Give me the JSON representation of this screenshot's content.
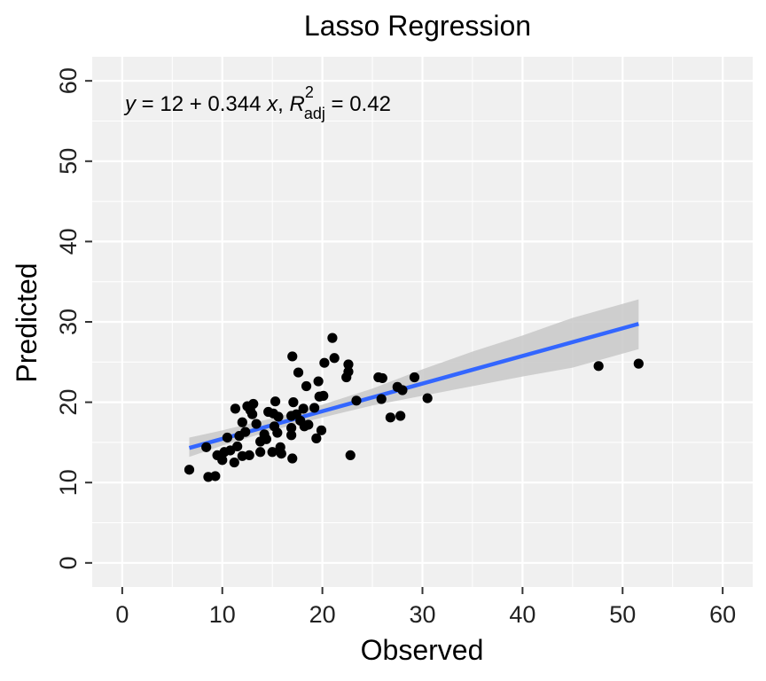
{
  "chart_data": {
    "type": "scatter",
    "title": "Lasso Regression",
    "xlabel": "Observed",
    "ylabel": "Predicted",
    "xlim": [
      -3,
      63
    ],
    "ylim": [
      -3,
      63
    ],
    "xticks": [
      0,
      10,
      20,
      30,
      40,
      50,
      60
    ],
    "yticks": [
      0,
      10,
      20,
      30,
      40,
      50,
      60
    ],
    "grid": true,
    "annotation": {
      "y_var": "y",
      "eq_text": " = 12 + 0.344 ",
      "x_var": "x",
      "sep": ", ",
      "r_sym": "R",
      "r_sup": "2",
      "r_sub": "adj",
      "r_val": " = 0.42"
    },
    "fit": {
      "intercept": 12,
      "slope": 0.344,
      "x_range": [
        6.7,
        51.6
      ],
      "color": "#3366ff",
      "band_color": "#c8c8c8"
    },
    "band": [
      {
        "x": 6.7,
        "lo": 13.2,
        "hi": 15.6
      },
      {
        "x": 10,
        "lo": 14.6,
        "hi": 16.5
      },
      {
        "x": 15,
        "lo": 16.5,
        "hi": 18.0
      },
      {
        "x": 20,
        "lo": 18.1,
        "hi": 19.7
      },
      {
        "x": 25,
        "lo": 19.6,
        "hi": 21.7
      },
      {
        "x": 30,
        "lo": 20.8,
        "hi": 24.1
      },
      {
        "x": 35,
        "lo": 22.0,
        "hi": 26.3
      },
      {
        "x": 40,
        "lo": 23.2,
        "hi": 28.3
      },
      {
        "x": 45,
        "lo": 24.3,
        "hi": 30.5
      },
      {
        "x": 51.6,
        "lo": 26.6,
        "hi": 32.8
      }
    ],
    "points": [
      {
        "x": 6.7,
        "y": 11.6
      },
      {
        "x": 8.4,
        "y": 14.4
      },
      {
        "x": 8.6,
        "y": 10.7
      },
      {
        "x": 9.3,
        "y": 10.8
      },
      {
        "x": 9.5,
        "y": 13.4
      },
      {
        "x": 10.0,
        "y": 12.8
      },
      {
        "x": 10.2,
        "y": 13.8
      },
      {
        "x": 10.5,
        "y": 15.6
      },
      {
        "x": 10.8,
        "y": 14.0
      },
      {
        "x": 11.2,
        "y": 12.5
      },
      {
        "x": 11.3,
        "y": 19.2
      },
      {
        "x": 11.5,
        "y": 14.5
      },
      {
        "x": 11.7,
        "y": 15.8
      },
      {
        "x": 12.0,
        "y": 17.5
      },
      {
        "x": 12.0,
        "y": 13.3
      },
      {
        "x": 12.3,
        "y": 16.3
      },
      {
        "x": 12.5,
        "y": 19.5
      },
      {
        "x": 12.7,
        "y": 13.4
      },
      {
        "x": 12.8,
        "y": 19.0
      },
      {
        "x": 13.0,
        "y": 18.5
      },
      {
        "x": 13.1,
        "y": 19.8
      },
      {
        "x": 13.4,
        "y": 17.3
      },
      {
        "x": 13.8,
        "y": 15.1
      },
      {
        "x": 13.8,
        "y": 13.8
      },
      {
        "x": 14.2,
        "y": 16.0
      },
      {
        "x": 14.4,
        "y": 15.4
      },
      {
        "x": 14.6,
        "y": 18.8
      },
      {
        "x": 15.0,
        "y": 13.8
      },
      {
        "x": 15.1,
        "y": 18.6
      },
      {
        "x": 15.2,
        "y": 17.0
      },
      {
        "x": 15.3,
        "y": 20.1
      },
      {
        "x": 15.5,
        "y": 16.2
      },
      {
        "x": 15.6,
        "y": 18.2
      },
      {
        "x": 15.8,
        "y": 14.4
      },
      {
        "x": 15.9,
        "y": 13.6
      },
      {
        "x": 16.9,
        "y": 18.3
      },
      {
        "x": 16.9,
        "y": 16.8
      },
      {
        "x": 16.9,
        "y": 15.9
      },
      {
        "x": 17.0,
        "y": 13.0
      },
      {
        "x": 17.0,
        "y": 25.7
      },
      {
        "x": 17.1,
        "y": 20.0
      },
      {
        "x": 17.4,
        "y": 18.5
      },
      {
        "x": 17.6,
        "y": 23.7
      },
      {
        "x": 17.8,
        "y": 17.7
      },
      {
        "x": 18.1,
        "y": 19.2
      },
      {
        "x": 18.2,
        "y": 17.0
      },
      {
        "x": 18.4,
        "y": 22.0
      },
      {
        "x": 18.6,
        "y": 17.2
      },
      {
        "x": 19.2,
        "y": 19.3
      },
      {
        "x": 19.4,
        "y": 15.5
      },
      {
        "x": 19.6,
        "y": 22.6
      },
      {
        "x": 19.7,
        "y": 20.7
      },
      {
        "x": 19.9,
        "y": 16.5
      },
      {
        "x": 20.1,
        "y": 20.8
      },
      {
        "x": 20.2,
        "y": 24.9
      },
      {
        "x": 21.0,
        "y": 28.0
      },
      {
        "x": 21.2,
        "y": 25.5
      },
      {
        "x": 22.4,
        "y": 23.1
      },
      {
        "x": 22.6,
        "y": 24.7
      },
      {
        "x": 22.6,
        "y": 23.8
      },
      {
        "x": 22.8,
        "y": 13.4
      },
      {
        "x": 23.4,
        "y": 20.2
      },
      {
        "x": 25.6,
        "y": 23.1
      },
      {
        "x": 25.9,
        "y": 20.4
      },
      {
        "x": 26.0,
        "y": 23.0
      },
      {
        "x": 26.8,
        "y": 18.1
      },
      {
        "x": 27.5,
        "y": 21.9
      },
      {
        "x": 27.8,
        "y": 18.3
      },
      {
        "x": 28.0,
        "y": 21.5
      },
      {
        "x": 29.2,
        "y": 23.1
      },
      {
        "x": 30.5,
        "y": 20.5
      },
      {
        "x": 47.6,
        "y": 24.5
      },
      {
        "x": 51.6,
        "y": 24.8
      }
    ]
  }
}
